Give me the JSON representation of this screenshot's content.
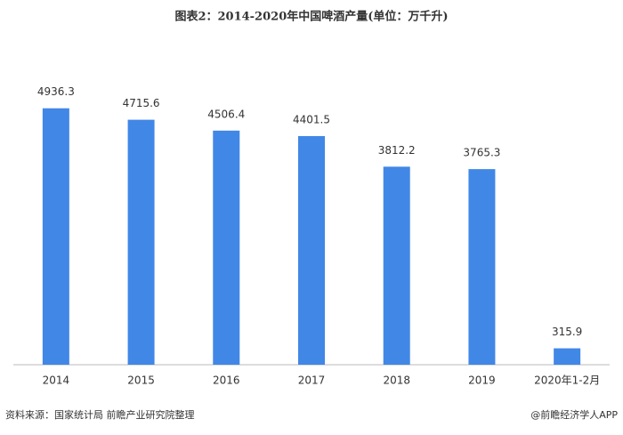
{
  "chart_data": {
    "type": "bar",
    "title": "图表2：2014-2020年中国啤酒产量(单位：万千升)",
    "categories": [
      "2014",
      "2015",
      "2016",
      "2017",
      "2018",
      "2019",
      "2020年1-2月"
    ],
    "values": [
      4936.3,
      4715.6,
      4506.4,
      4401.5,
      3812.2,
      3765.3,
      315.9
    ],
    "color": "#4187e6",
    "ylim": [
      0,
      5000
    ],
    "source": "资料来源：国家统计局 前瞻产业研究院整理",
    "credit": "@前瞻经济学人APP"
  }
}
